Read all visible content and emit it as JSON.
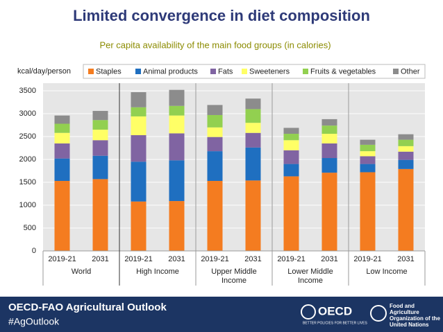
{
  "chart_data": {
    "type": "stacked_bar",
    "title": "Limited convergence in diet composition",
    "subtitle": "Per capita availability of the main food groups (in calories)",
    "ylabel": "kcal/day/person",
    "categories": [
      "2019-21",
      "2031",
      "2019-21",
      "2031",
      "2019-21",
      "2031",
      "2019-21",
      "2031",
      "2019-21",
      "2031"
    ],
    "groups": [
      {
        "name": "World",
        "span": 2
      },
      {
        "name": "High Income",
        "span": 2
      },
      {
        "name": "Upper Middle Income",
        "span": 2
      },
      {
        "name": "Lower Middle Income",
        "span": 2
      },
      {
        "name": "Low Income",
        "span": 2
      }
    ],
    "series": [
      {
        "name": "Staples",
        "color": "#f47c20",
        "values": [
          1530,
          1570,
          1080,
          1090,
          1530,
          1540,
          1630,
          1710,
          1720,
          1790
        ]
      },
      {
        "name": "Animal products",
        "color": "#1f6fc0",
        "values": [
          490,
          510,
          870,
          890,
          650,
          720,
          270,
          320,
          180,
          200
        ]
      },
      {
        "name": "Fats",
        "color": "#8064a2",
        "values": [
          330,
          340,
          580,
          590,
          310,
          320,
          300,
          320,
          170,
          180
        ]
      },
      {
        "name": "Sweeteners",
        "color": "#ffff66",
        "values": [
          230,
          230,
          410,
          390,
          210,
          220,
          220,
          210,
          110,
          120
        ]
      },
      {
        "name": "Fruits & vegetables",
        "color": "#92d050",
        "values": [
          200,
          210,
          200,
          210,
          270,
          300,
          140,
          180,
          140,
          140
        ]
      },
      {
        "name": "Other",
        "color": "#8c8c8c",
        "values": [
          180,
          200,
          330,
          350,
          220,
          230,
          130,
          140,
          110,
          120
        ]
      }
    ],
    "ylim": [
      0,
      3500
    ],
    "yticks": [
      0,
      500,
      1000,
      1500,
      2000,
      2500,
      3000,
      3500
    ],
    "grid": true
  },
  "footer": {
    "title": "OECD-FAO Agricultural Outlook",
    "hashtag": "#AgOutlook",
    "oecd": "OECD",
    "oecd_tagline": "BETTER POLICIES FOR BETTER LIVES",
    "fao": "Food and Agriculture Organization of the United Nations"
  }
}
